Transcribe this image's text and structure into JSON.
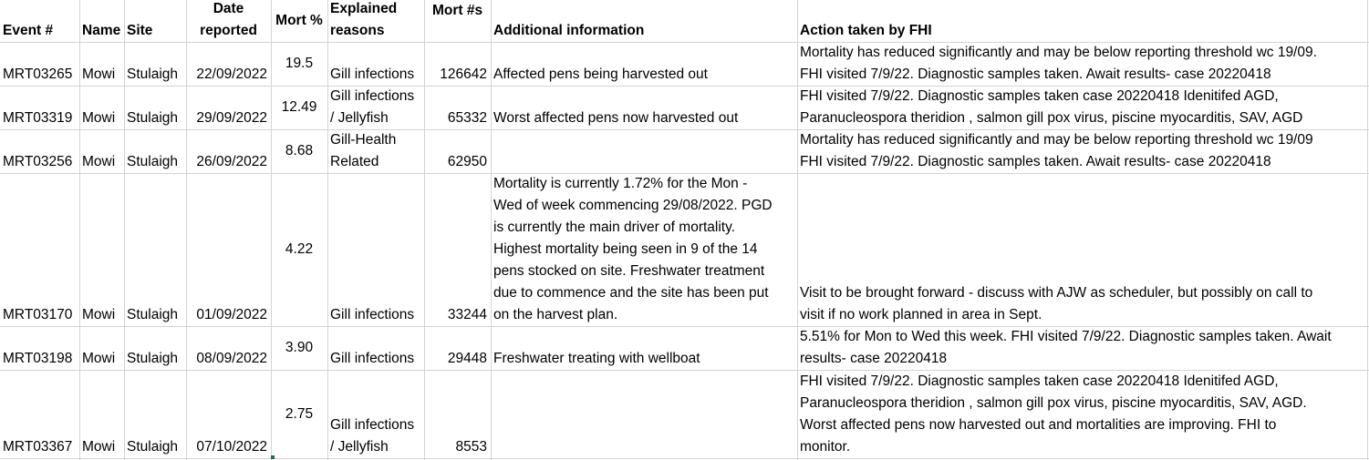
{
  "headers": {
    "event": "Event #",
    "name": "Name",
    "site": "Site",
    "date": [
      "Date",
      "reported"
    ],
    "mort_pct": "Mort %",
    "reasons": [
      "Explained",
      "reasons"
    ],
    "mort_num": "Mort #s",
    "info": "Additional information",
    "action": "Action taken by FHI"
  },
  "rows": [
    {
      "event": "MRT03265",
      "name": "Mowi",
      "site": "Stulaigh",
      "date": "22/09/2022",
      "mort_pct": "19.5",
      "reasons": [
        "Gill infections"
      ],
      "mort_num": "126642",
      "info": [
        "Affected pens being harvested out"
      ],
      "action": [
        "Mortality has reduced significantly and may be below reporting threshold wc 19/09.",
        "FHI visited 7/9/22. Diagnostic samples taken. Await results- case 20220418"
      ]
    },
    {
      "event": "MRT03319",
      "name": "Mowi",
      "site": "Stulaigh",
      "date": "29/09/2022",
      "mort_pct": "12.49",
      "reasons": [
        "Gill infections",
        "/ Jellyfish"
      ],
      "mort_num": "65332",
      "info": [
        "Worst affected pens now harvested out"
      ],
      "action": [
        "FHI visited 7/9/22. Diagnostic samples taken case 20220418 Idenitifed AGD,",
        "Paranucleospora theridion , salmon gill pox virus, piscine myocarditis, SAV, AGD"
      ]
    },
    {
      "event": "MRT03256",
      "name": "Mowi",
      "site": "Stulaigh",
      "date": "26/09/2022",
      "mort_pct": "8.68",
      "reasons": [
        "Gill-Health",
        "Related"
      ],
      "mort_num": "62950",
      "info": [],
      "action": [
        "Mortality has reduced significantly and may be below reporting threshold wc 19/09",
        "FHI visited 7/9/22. Diagnostic samples taken. Await results- case 20220418"
      ]
    },
    {
      "event": "MRT03170",
      "name": "Mowi",
      "site": "Stulaigh",
      "date": "01/09/2022",
      "mort_pct": "4.22",
      "reasons": [
        "Gill infections"
      ],
      "mort_num": "33244",
      "info": [
        "Mortality is currently 1.72% for the Mon -",
        "Wed of week commencing 29/08/2022. PGD",
        "is currently the main driver of mortality.",
        "Highest mortality being seen in 9 of the 14",
        "pens stocked on site. Freshwater treatment",
        "due to commence and the site has been put",
        "on the harvest plan."
      ],
      "action": [
        "Visit to be brought forward - discuss with AJW as scheduler, but possibly on call to",
        "visit if no work planned in area in Sept."
      ]
    },
    {
      "event": "MRT03198",
      "name": "Mowi",
      "site": "Stulaigh",
      "date": "08/09/2022",
      "mort_pct": "3.90",
      "reasons": [
        "Gill infections"
      ],
      "mort_num": "29448",
      "info": [
        "Freshwater treating with wellboat"
      ],
      "action": [
        "5.51% for Mon to Wed this week. FHI visited 7/9/22. Diagnostic samples taken. Await",
        "results- case 20220418"
      ]
    },
    {
      "event": "MRT03367",
      "name": "Mowi",
      "site": "Stulaigh",
      "date": "07/10/2022",
      "mort_pct": "2.75",
      "reasons": [
        "Gill infections",
        "/ Jellyfish"
      ],
      "mort_num": "8553",
      "info": [],
      "action": [
        "FHI visited 7/9/22. Diagnostic samples taken case 20220418 Idenitifed AGD,",
        "Paranucleospora theridion , salmon gill pox virus, piscine myocarditis, SAV, AGD.",
        "Worst affected pens now harvested out and mortalities are improving. FHI to",
        "monitor."
      ]
    }
  ]
}
